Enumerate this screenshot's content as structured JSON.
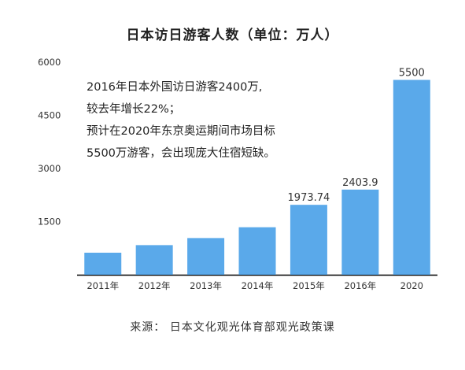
{
  "chart_data": {
    "type": "bar",
    "title": "日本访日游客人数（单位：万人）",
    "categories": [
      "2011年",
      "2012年",
      "2013年",
      "2014年",
      "2015年",
      "2016年",
      "2020"
    ],
    "values": [
      622,
      836,
      1036,
      1341,
      1973.74,
      2403.9,
      5500
    ],
    "data_labels": [
      "",
      "",
      "",
      "",
      "1973.74",
      "2403.9",
      "5500"
    ],
    "ylim": [
      0,
      6000
    ],
    "yticks": [
      "6000",
      "4500",
      "3000",
      "1500"
    ],
    "ytick_values": [
      6000,
      4500,
      3000,
      1500
    ],
    "bar_color": "#5aa9ea",
    "grid": false,
    "legend": "none"
  },
  "annotation": {
    "lines": [
      "2016年日本外国访日游客2400万,",
      "较去年增长22%；",
      "预计在2020年东京奥运期间市场目标",
      "5500万游客，会出现庞大住宿短缺。"
    ]
  },
  "source": "来源： 日本文化观光体育部观光政策课"
}
